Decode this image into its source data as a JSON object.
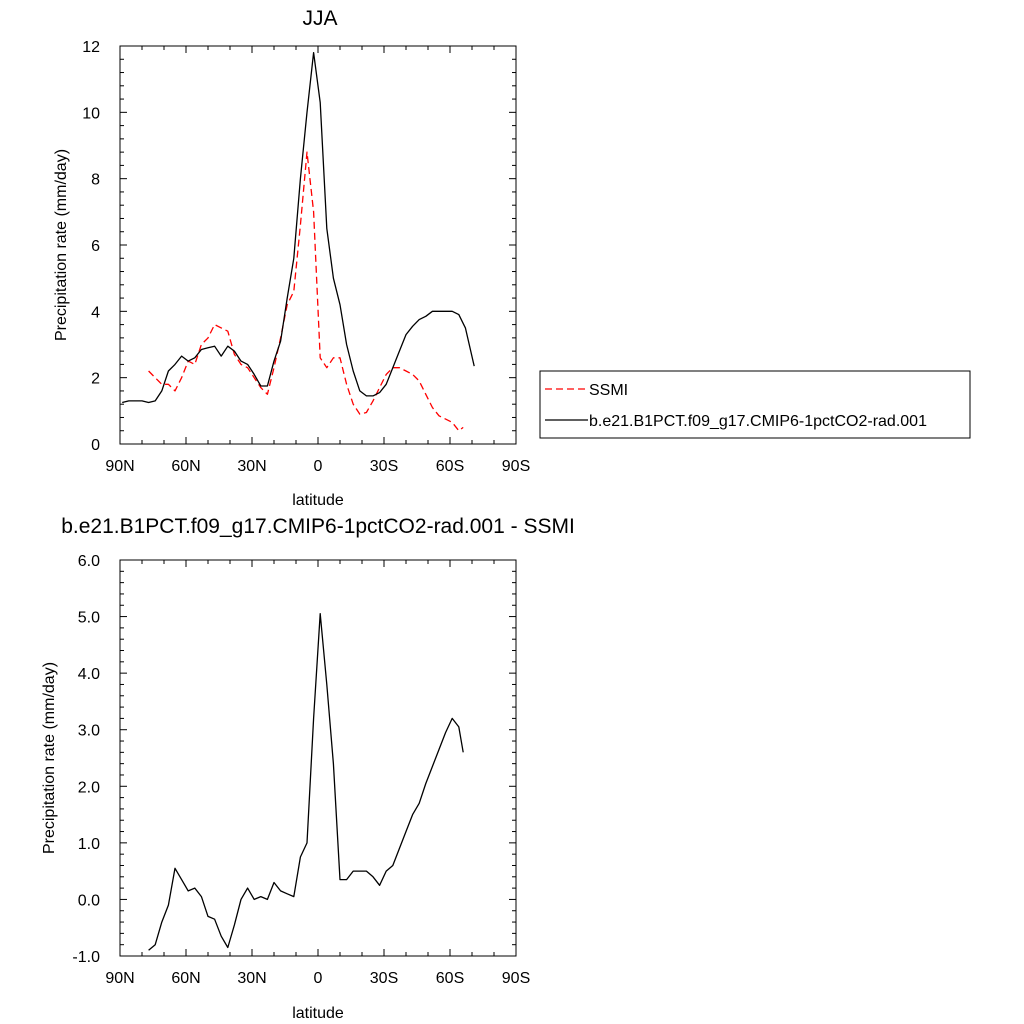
{
  "chart_data": [
    {
      "type": "line",
      "title": "JJA",
      "xlabel": "latitude",
      "ylabel": "Precipitation rate (mm/day)",
      "xlim": [
        90,
        -90
      ],
      "ylim": [
        0,
        12
      ],
      "xticks": [
        90,
        60,
        30,
        0,
        -30,
        -60,
        -90
      ],
      "xtick_labels": [
        "90N",
        "60N",
        "30N",
        "0",
        "30S",
        "60S",
        "90S"
      ],
      "yticks": [
        0,
        2,
        4,
        6,
        8,
        10,
        12
      ],
      "ytick_labels": [
        "0",
        "2",
        "4",
        "6",
        "8",
        "10",
        "12"
      ],
      "grid": false,
      "legend_position": "right",
      "series": [
        {
          "name": "SSMI",
          "color": "#ff0000",
          "dash": "dashed",
          "x": [
            77,
            74,
            71,
            68,
            65,
            62,
            59,
            56,
            53,
            50,
            47,
            44,
            41,
            38,
            35,
            32,
            29,
            26,
            23,
            20,
            17,
            14,
            11,
            8,
            5,
            2,
            -1,
            -4,
            -7,
            -10,
            -13,
            -16,
            -19,
            -22,
            -25,
            -28,
            -31,
            -34,
            -37,
            -40,
            -43,
            -46,
            -49,
            -52,
            -55,
            -58,
            -61,
            -64,
            -66
          ],
          "y": [
            2.2,
            2.0,
            1.8,
            1.8,
            1.6,
            2.0,
            2.5,
            2.4,
            3.0,
            3.2,
            3.6,
            3.5,
            3.4,
            2.7,
            2.4,
            2.3,
            2.0,
            1.7,
            1.5,
            2.3,
            3.2,
            4.2,
            4.6,
            6.6,
            8.8,
            7.0,
            2.6,
            2.3,
            2.6,
            2.6,
            1.8,
            1.2,
            0.9,
            0.95,
            1.3,
            1.7,
            2.1,
            2.3,
            2.3,
            2.2,
            2.1,
            1.9,
            1.5,
            1.1,
            0.85,
            0.75,
            0.65,
            0.4,
            0.5
          ]
        },
        {
          "name": "b.e21.B1PCT.f09_g17.CMIP6-1pctCO2-rad.001",
          "color": "#000000",
          "dash": "solid",
          "x": [
            89,
            86,
            83,
            80,
            77,
            74,
            71,
            68,
            65,
            62,
            59,
            56,
            53,
            50,
            47,
            44,
            41,
            38,
            35,
            32,
            29,
            26,
            23,
            20,
            17,
            14,
            11,
            8,
            5,
            2,
            -1,
            -4,
            -7,
            -10,
            -13,
            -16,
            -19,
            -22,
            -25,
            -28,
            -31,
            -34,
            -37,
            -40,
            -43,
            -46,
            -49,
            -52,
            -55,
            -58,
            -61,
            -64,
            -67,
            -71
          ],
          "y": [
            1.25,
            1.3,
            1.3,
            1.3,
            1.25,
            1.3,
            1.6,
            2.2,
            2.4,
            2.65,
            2.5,
            2.6,
            2.85,
            2.9,
            2.95,
            2.65,
            2.95,
            2.8,
            2.5,
            2.4,
            2.1,
            1.75,
            1.75,
            2.5,
            3.1,
            4.4,
            5.6,
            8.0,
            10.0,
            11.8,
            10.3,
            6.5,
            5.0,
            4.2,
            3.0,
            2.2,
            1.6,
            1.45,
            1.45,
            1.55,
            1.8,
            2.3,
            2.8,
            3.3,
            3.55,
            3.75,
            3.85,
            4.0,
            4.0,
            4.0,
            4.0,
            3.9,
            3.5,
            2.35
          ]
        }
      ]
    },
    {
      "type": "line",
      "title": "b.e21.B1PCT.f09_g17.CMIP6-1pctCO2-rad.001 - SSMI",
      "xlabel": "latitude",
      "ylabel": "Precipitation rate (mm/day)",
      "xlim": [
        90,
        -90
      ],
      "ylim": [
        -1.0,
        6.0
      ],
      "xticks": [
        90,
        60,
        30,
        0,
        -30,
        -60,
        -90
      ],
      "xtick_labels": [
        "90N",
        "60N",
        "30N",
        "0",
        "30S",
        "60S",
        "90S"
      ],
      "yticks": [
        -1.0,
        0.0,
        1.0,
        2.0,
        3.0,
        4.0,
        5.0,
        6.0
      ],
      "ytick_labels": [
        "-1.0",
        "0.0",
        "1.0",
        "2.0",
        "3.0",
        "4.0",
        "5.0",
        "6.0"
      ],
      "grid": false,
      "series": [
        {
          "color": "#000000",
          "dash": "solid",
          "x": [
            77,
            74,
            71,
            68,
            65,
            62,
            59,
            56,
            53,
            50,
            47,
            44,
            41,
            38,
            35,
            32,
            29,
            26,
            23,
            20,
            17,
            14,
            11,
            8,
            5,
            2,
            -1,
            -4,
            -7,
            -10,
            -13,
            -16,
            -19,
            -22,
            -25,
            -28,
            -31,
            -34,
            -37,
            -40,
            -43,
            -46,
            -49,
            -52,
            -55,
            -58,
            -61,
            -64,
            -66
          ],
          "y": [
            -0.9,
            -0.8,
            -0.4,
            -0.1,
            0.55,
            0.35,
            0.15,
            0.2,
            0.05,
            -0.3,
            -0.35,
            -0.65,
            -0.85,
            -0.45,
            0.0,
            0.2,
            0.0,
            0.05,
            0.0,
            0.3,
            0.15,
            0.1,
            0.05,
            0.75,
            1.0,
            3.2,
            5.05,
            3.8,
            2.4,
            0.35,
            0.35,
            0.5,
            0.5,
            0.5,
            0.4,
            0.25,
            0.5,
            0.6,
            0.9,
            1.2,
            1.5,
            1.7,
            2.05,
            2.35,
            2.65,
            2.95,
            3.2,
            3.05,
            2.6
          ]
        }
      ]
    }
  ]
}
